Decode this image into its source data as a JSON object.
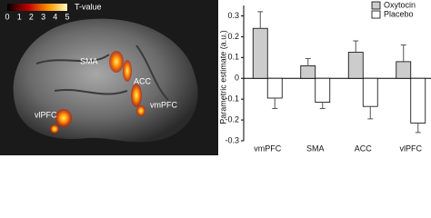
{
  "brain_panel": {
    "colorbar_label": "T-value",
    "colorbar_lim": [
      0,
      5
    ],
    "colorbar_ticks": [
      0,
      1,
      2,
      3,
      4,
      5
    ],
    "region_labels": [
      "SMA",
      "ACC",
      "vmPFC",
      "vlPFC"
    ]
  },
  "chart_data": {
    "type": "bar",
    "ylabel": "Parametric estimate (a.u.)",
    "categories": [
      "vmPFC",
      "SMA",
      "ACC",
      "vlPFC"
    ],
    "series": [
      {
        "name": "Oxytocin",
        "color": "#cccccc",
        "values": [
          0.24,
          0.06,
          0.125,
          0.08
        ],
        "errors": [
          0.08,
          0.035,
          0.055,
          0.08
        ]
      },
      {
        "name": "Placebo",
        "color": "#ffffff",
        "values": [
          -0.095,
          -0.115,
          -0.135,
          -0.215
        ],
        "errors": [
          0.05,
          0.03,
          0.06,
          0.045
        ]
      }
    ],
    "ylim": [
      -0.3,
      0.35
    ],
    "yticks": [
      -0.3,
      -0.2,
      -0.1,
      0,
      0.1,
      0.2,
      0.3
    ],
    "legend": "top-right"
  }
}
